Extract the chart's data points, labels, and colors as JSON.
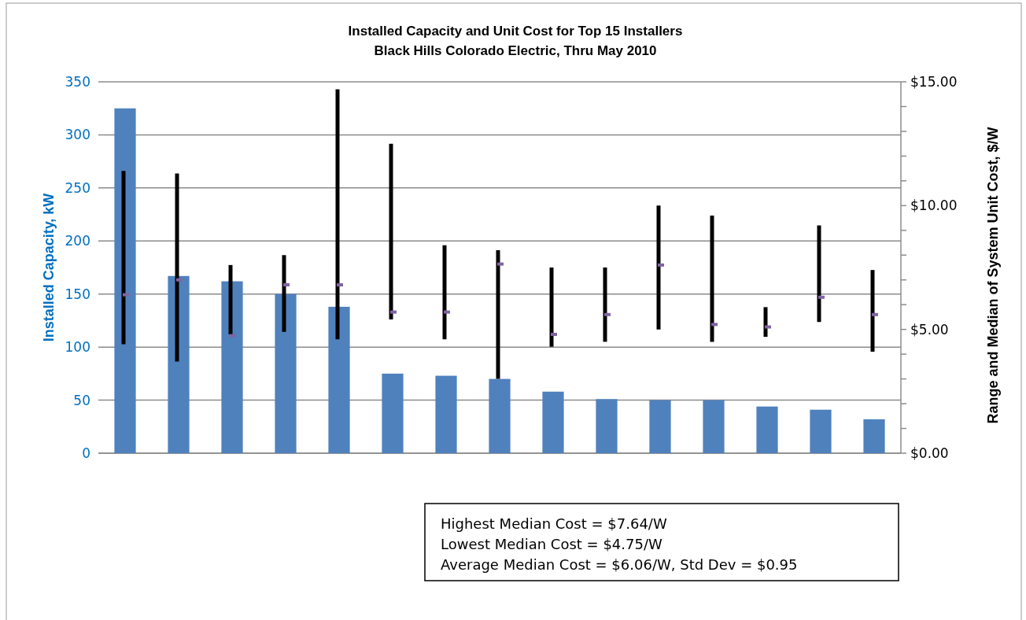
{
  "chart_data": {
    "type": "bar",
    "title": "Installed Capacity and Unit Cost for Top 15 Installers",
    "subtitle": "Black Hills Colorado Electric, Thru May 2010",
    "ylabel": "Installed Capacity, kW",
    "y2label": "Range and Median of System Unit Cost, $/W",
    "categories": [
      null,
      null,
      null,
      null,
      null,
      null,
      null,
      null,
      null,
      null,
      null,
      null,
      null,
      null,
      null
    ],
    "series": [
      {
        "color": "#4f81bd",
        "values": [
          325,
          167,
          162,
          150,
          138,
          75,
          73,
          70,
          58,
          51,
          50,
          50,
          44,
          41,
          32
        ]
      },
      {
        "type": "scatter",
        "axis": "y2",
        "color": "#8064a2",
        "marker": "square",
        "values": [
          6.4,
          7.0,
          4.75,
          6.8,
          6.8,
          5.7,
          5.7,
          7.64,
          4.8,
          5.6,
          7.6,
          5.2,
          5.1,
          6.3,
          5.6
        ],
        "errors": [
          [
            4.4,
            11.4
          ],
          [
            3.7,
            11.3
          ],
          [
            4.8,
            7.6
          ],
          [
            4.9,
            8.0
          ],
          [
            4.6,
            14.7
          ],
          [
            5.4,
            12.5
          ],
          [
            4.6,
            8.4
          ],
          [
            3.0,
            8.2
          ],
          [
            4.3,
            7.5
          ],
          [
            4.5,
            7.5
          ],
          [
            5.0,
            10.0
          ],
          [
            4.5,
            9.6
          ],
          [
            4.7,
            5.9
          ],
          [
            5.3,
            9.2
          ],
          [
            4.1,
            7.4
          ]
        ]
      }
    ],
    "ylim": [
      0,
      350
    ],
    "yticks": [
      0,
      50,
      100,
      150,
      200,
      250,
      300,
      350
    ],
    "y2lim": [
      0,
      15
    ],
    "y2ticks": [
      {
        "value": 0,
        "label": "$0.00"
      },
      {
        "value": 1,
        "label": null
      },
      {
        "value": 2,
        "label": null
      },
      {
        "value": 3,
        "label": null
      },
      {
        "value": 4,
        "label": null
      },
      {
        "value": 5,
        "label": "$5.00"
      },
      {
        "value": 6,
        "label": null
      },
      {
        "value": 7,
        "label": null
      },
      {
        "value": 8,
        "label": null
      },
      {
        "value": 9,
        "label": null
      },
      {
        "value": 10,
        "label": "$10.00"
      },
      {
        "value": 11,
        "label": null
      },
      {
        "value": 12,
        "label": null
      },
      {
        "value": 13,
        "label": null
      },
      {
        "value": 14,
        "label": null
      },
      {
        "value": 15,
        "label": "$15.00"
      }
    ],
    "grid": "y",
    "annotations": [
      "Highest Median Cost = $7.64/W",
      "Lowest Median Cost = $4.75/W",
      "Average Median Cost = $6.06/W, Std Dev = $0.95"
    ]
  }
}
